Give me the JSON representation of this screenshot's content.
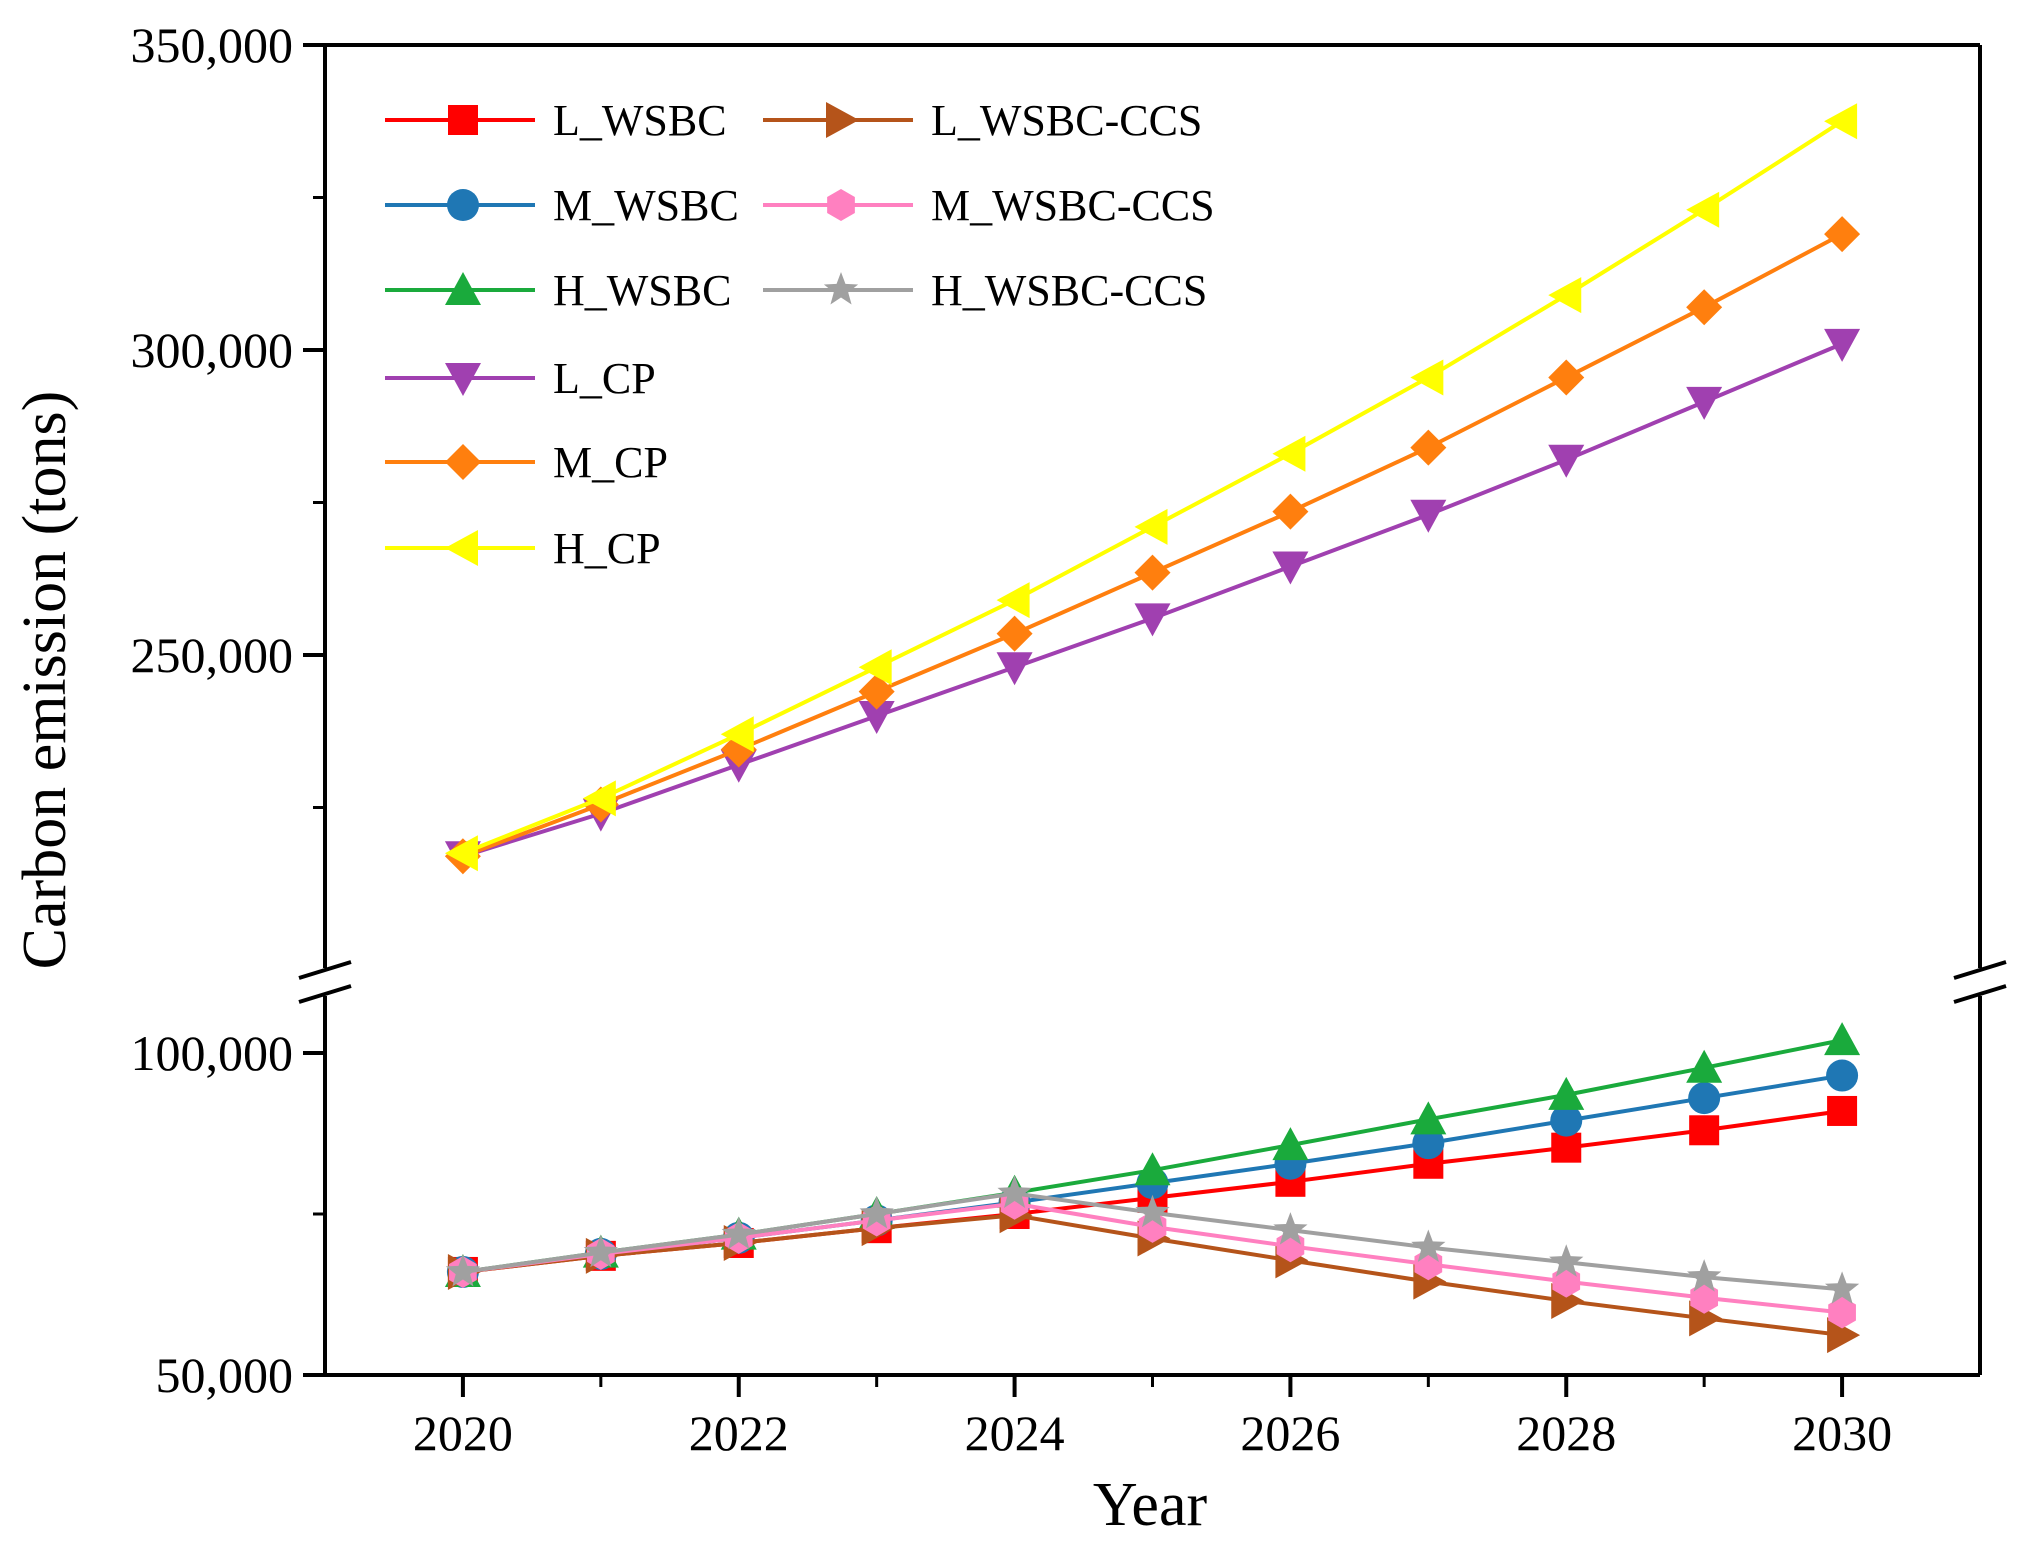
{
  "chart_data": {
    "type": "line",
    "title": "",
    "xlabel": "Year",
    "ylabel": "Carbon emission (tons)",
    "broken_y_axis": true,
    "y_break_between": [
      100000,
      200000
    ],
    "upper_segment_ylim": [
      200000,
      350000
    ],
    "lower_segment_ylim": [
      50000,
      105000
    ],
    "xlim": [
      2019,
      2031
    ],
    "x_ticks": [
      2020,
      2022,
      2024,
      2026,
      2028,
      2030
    ],
    "x_tick_labels": [
      "2020",
      "2022",
      "2024",
      "2026",
      "2028",
      "2030"
    ],
    "y_ticks": [
      50000,
      100000,
      250000,
      300000,
      350000
    ],
    "y_tick_labels": [
      "50,000",
      "100,000",
      "250,000",
      "300,000",
      "350,000"
    ],
    "y_minor_ticks": [
      75000,
      225000,
      275000,
      325000
    ],
    "grid": false,
    "legend_position": "top-left",
    "x": [
      2020,
      2021,
      2022,
      2023,
      2024,
      2025,
      2026,
      2027,
      2028,
      2029,
      2030
    ],
    "series": [
      {
        "name": "L_WSBC",
        "color": "#ff0000",
        "marker": "square",
        "values": [
          66000,
          68500,
          70500,
          72800,
          75000,
          77500,
          80000,
          82800,
          85300,
          88000,
          91000
        ]
      },
      {
        "name": "L_WSBC-CCS",
        "color": "#b5541a",
        "marker": "triangle-right",
        "values": [
          66000,
          68500,
          70500,
          72800,
          74800,
          71200,
          67800,
          64500,
          61500,
          58800,
          56200
        ]
      },
      {
        "name": "M_WSBC",
        "color": "#1f77b4",
        "marker": "circle",
        "values": [
          66000,
          68800,
          71300,
          74000,
          76800,
          79800,
          82800,
          86000,
          89500,
          93000,
          96500
        ]
      },
      {
        "name": "M_WSBC-CCS",
        "color": "#ff80c0",
        "marker": "hexagon",
        "values": [
          66000,
          68800,
          71300,
          74000,
          76600,
          73000,
          70000,
          67200,
          64500,
          62000,
          59700
        ]
      },
      {
        "name": "H_WSBC",
        "color": "#1aaa3c",
        "marker": "triangle-up",
        "values": [
          66000,
          69000,
          71800,
          75000,
          78300,
          81800,
          85700,
          89700,
          93500,
          97700,
          102000
        ]
      },
      {
        "name": "H_WSBC-CCS",
        "color": "#a0a0a0",
        "marker": "star",
        "values": [
          66000,
          69000,
          71800,
          75000,
          78200,
          75200,
          72500,
          69800,
          67500,
          65200,
          63300
        ]
      },
      {
        "name": "L_CP",
        "color": "#a040b0",
        "marker": "triangle-down",
        "values": [
          217000,
          224000,
          232000,
          240000,
          248000,
          256000,
          264500,
          273000,
          282000,
          291500,
          301000
        ]
      },
      {
        "name": "M_CP",
        "color": "#ff7f0e",
        "marker": "diamond",
        "values": [
          217000,
          225500,
          234500,
          244000,
          253500,
          263500,
          273500,
          284000,
          295500,
          307000,
          319000
        ]
      },
      {
        "name": "H_CP",
        "color": "#ffff00",
        "marker": "triangle-left",
        "values": [
          217500,
          226500,
          237000,
          248000,
          259000,
          271000,
          283000,
          295500,
          309000,
          323000,
          337500
        ]
      }
    ]
  }
}
